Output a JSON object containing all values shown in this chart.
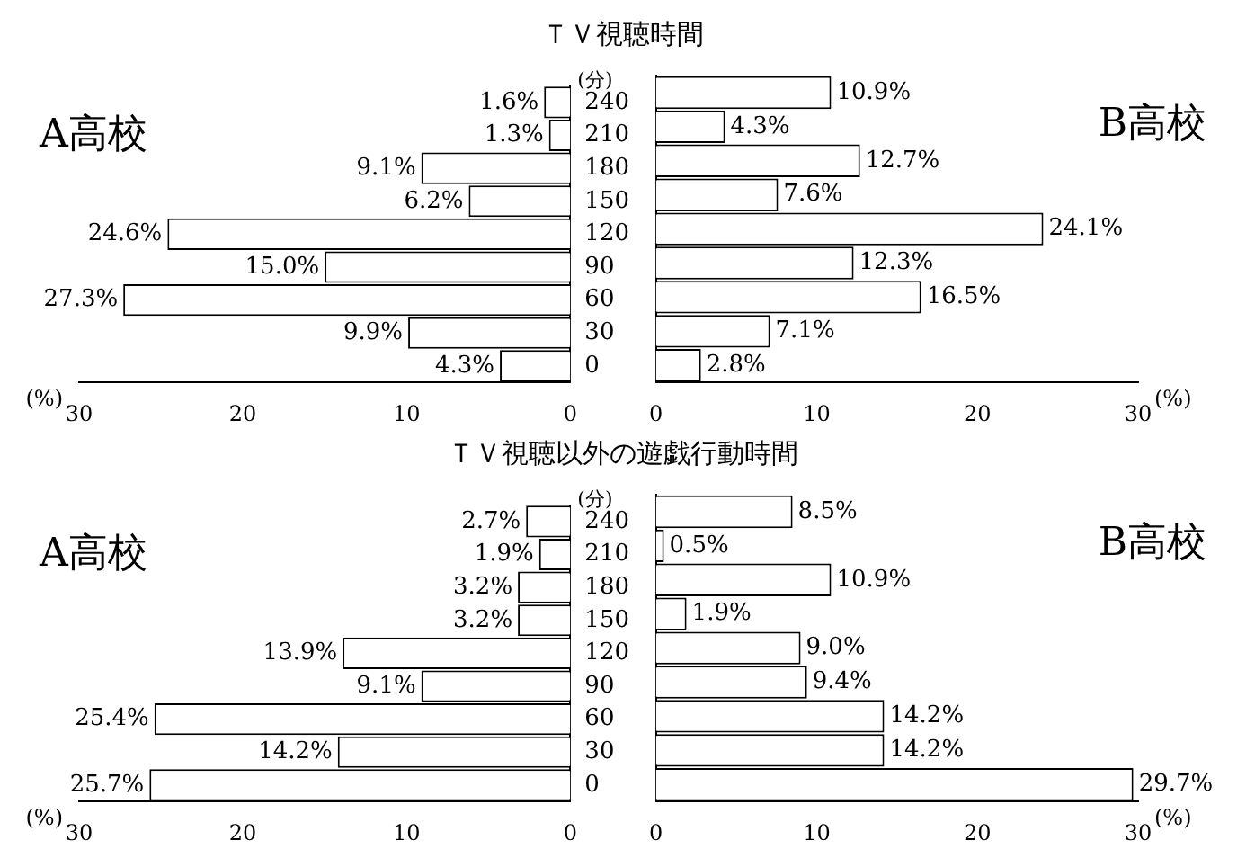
{
  "chart_data": [
    {
      "type": "bar",
      "orientation": "horizontal",
      "title": "ＴＶ視聴時間",
      "xlabel": "(%)",
      "ylabel": "(分)",
      "annotations": [
        "A高校"
      ],
      "categories": [
        "240",
        "210",
        "180",
        "150",
        "120",
        "90",
        "60",
        "30",
        "0"
      ],
      "values": [
        1.6,
        1.3,
        9.1,
        6.2,
        24.6,
        15.0,
        27.3,
        9.9,
        4.3
      ],
      "value_labels": [
        "1.6%",
        "1.3%",
        "9.1%",
        "6.2%",
        "24.6%",
        "15.0%",
        "27.3%",
        "9.9%",
        "4.3%"
      ],
      "color": "#ffffff",
      "xlim": [
        30,
        0
      ],
      "xticks": [
        30,
        20,
        10,
        0
      ],
      "grid": false,
      "legend": false
    },
    {
      "type": "bar",
      "orientation": "horizontal",
      "xlabel": "(%)",
      "annotations": [
        "B高校"
      ],
      "categories": [
        "240",
        "210",
        "180",
        "150",
        "120",
        "90",
        "60",
        "30",
        "0"
      ],
      "values": [
        10.9,
        4.3,
        12.7,
        7.6,
        24.1,
        12.3,
        16.5,
        7.1,
        2.8
      ],
      "value_labels": [
        "10.9%",
        "4.3%",
        "12.7%",
        "7.6%",
        "24.1%",
        "12.3%",
        "16.5%",
        "7.1%",
        "2.8%"
      ],
      "color": "#ffffff",
      "xlim": [
        0,
        30
      ],
      "xticks": [
        0,
        10,
        20,
        30
      ],
      "grid": false,
      "legend": false,
      "tick_labels": "x"
    },
    {
      "type": "bar",
      "orientation": "horizontal",
      "title": "ＴＶ視聴以外の遊戯行動時間",
      "xlabel": "(%)",
      "ylabel": "(分)",
      "annotations": [
        "A高校"
      ],
      "categories": [
        "240",
        "210",
        "180",
        "150",
        "120",
        "90",
        "60",
        "30",
        "0"
      ],
      "values": [
        2.7,
        1.9,
        3.2,
        3.2,
        13.9,
        9.1,
        25.4,
        14.2,
        25.7
      ],
      "value_labels": [
        "2.7%",
        "1.9%",
        "3.2%",
        "3.2%",
        "13.9%",
        "9.1%",
        "25.4%",
        "14.2%",
        "25.7%"
      ],
      "color": "#ffffff",
      "xlim": [
        30,
        0
      ],
      "xticks": [
        30,
        20,
        10,
        0
      ],
      "grid": false,
      "legend": false
    },
    {
      "type": "bar",
      "orientation": "horizontal",
      "xlabel": "(%)",
      "annotations": [
        "B高校"
      ],
      "categories": [
        "240",
        "210",
        "180",
        "150",
        "120",
        "90",
        "60",
        "30",
        "0"
      ],
      "values": [
        8.5,
        0.5,
        10.9,
        1.9,
        9.0,
        9.4,
        14.2,
        14.2,
        29.7
      ],
      "value_labels": [
        "8.5%",
        "0.5%",
        "10.9%",
        "1.9%",
        "9.0%",
        "9.4%",
        "14.2%",
        "14.2%",
        "29.7%"
      ],
      "color": "#ffffff",
      "xlim": [
        0,
        30
      ],
      "xticks": [
        0,
        10,
        20,
        30
      ],
      "grid": false,
      "legend": false,
      "tick_labels": "x"
    }
  ]
}
